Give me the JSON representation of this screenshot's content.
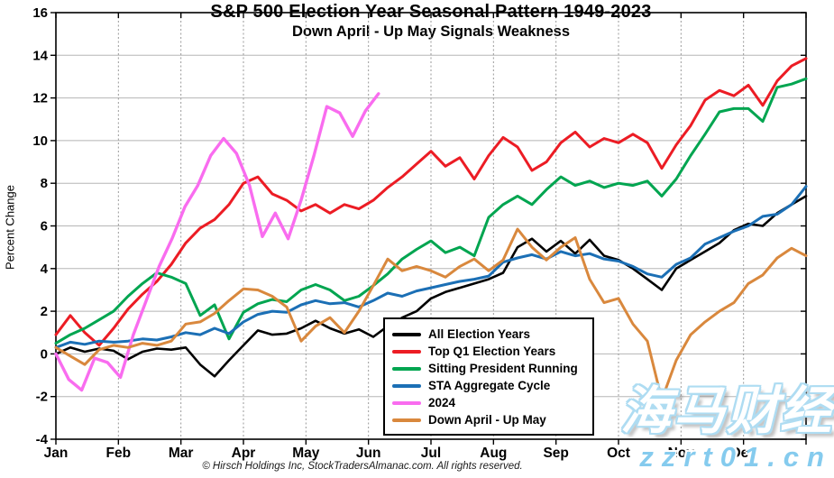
{
  "page": {
    "title": "S&P 500 Election Year Seasonal Pattern 1949-2023",
    "subtitle": "Down April - Up May Signals Weakness",
    "copyright": "© Hirsch Holdings Inc, StockTradersAlmanac.com. All rights reserved.",
    "watermark": {
      "text": "海马财经",
      "url": "zzrt01.cn"
    }
  },
  "chart_data": {
    "type": "line",
    "title": "S&P 500 Election Year Seasonal Pattern 1949-2023",
    "subtitle": "Down April - Up May Signals Weakness",
    "ylabel": "Percent Change",
    "xlabel": "",
    "grid": true,
    "legend_position": "inside-bottom-center-box",
    "x_axis": {
      "months": [
        "Jan",
        "Feb",
        "Mar",
        "Apr",
        "May",
        "Jun",
        "Jul",
        "Aug",
        "Sep",
        "Oct",
        "Nov",
        "Dec"
      ]
    },
    "y_axis": {
      "min": -4,
      "max": 16,
      "tick_step": 2,
      "ticks": [
        16,
        14,
        12,
        10,
        8,
        6,
        4,
        2,
        0,
        -2,
        -4
      ]
    },
    "colors": {
      "black": "#000000",
      "red": "#ec1c24",
      "green": "#00a550",
      "blue": "#1b6fb5",
      "magenta": "#f96cef",
      "orange": "#d9883d",
      "grid_h": "#b5b5b5",
      "grid_v": "#9a9a9a",
      "axis": "#000000"
    },
    "series": [
      {
        "name": "All Election Years",
        "color": "#000000",
        "width": 2.6,
        "x_end": 1,
        "values": [
          0.0,
          0.3,
          0.1,
          0.25,
          0.15,
          -0.25,
          0.1,
          0.25,
          0.2,
          0.3,
          -0.5,
          -1.05,
          -0.3,
          0.4,
          1.1,
          0.9,
          0.95,
          1.2,
          1.55,
          1.2,
          0.95,
          1.15,
          0.8,
          1.3,
          1.7,
          2.0,
          2.6,
          2.9,
          3.1,
          3.3,
          3.5,
          3.8,
          5.0,
          5.4,
          4.8,
          5.3,
          4.7,
          5.35,
          4.6,
          4.4,
          4.0,
          3.5,
          3.0,
          4.0,
          4.4,
          4.8,
          5.2,
          5.8,
          6.1,
          6.0,
          6.6,
          7.0,
          7.4
        ]
      },
      {
        "name": "Top Q1 Election Years",
        "color": "#ec1c24",
        "width": 3,
        "x_end": 1,
        "values": [
          0.9,
          1.8,
          1.0,
          0.4,
          1.2,
          2.1,
          2.8,
          3.4,
          4.2,
          5.2,
          5.9,
          6.3,
          7.0,
          8.0,
          8.3,
          7.5,
          7.2,
          6.7,
          7.0,
          6.6,
          7.0,
          6.8,
          7.2,
          7.8,
          8.3,
          8.9,
          9.5,
          8.8,
          9.2,
          8.2,
          9.3,
          10.15,
          9.7,
          8.6,
          9.0,
          9.9,
          10.4,
          9.7,
          10.1,
          9.9,
          10.3,
          9.9,
          8.7,
          9.8,
          10.7,
          11.9,
          12.35,
          12.1,
          12.6,
          11.65,
          12.8,
          13.5,
          13.85
        ]
      },
      {
        "name": "Sitting President Running",
        "color": "#00a550",
        "width": 3,
        "x_end": 1,
        "values": [
          0.5,
          0.9,
          1.2,
          1.6,
          2.0,
          2.7,
          3.3,
          3.8,
          3.6,
          3.3,
          1.8,
          2.3,
          0.7,
          1.95,
          2.35,
          2.55,
          2.45,
          3.0,
          3.25,
          3.0,
          2.5,
          2.7,
          3.2,
          3.75,
          4.45,
          4.9,
          5.3,
          4.75,
          5.0,
          4.6,
          6.4,
          7.0,
          7.4,
          7.0,
          7.7,
          8.3,
          7.9,
          8.1,
          7.8,
          8.0,
          7.9,
          8.1,
          7.4,
          8.2,
          9.3,
          10.3,
          11.35,
          11.5,
          11.5,
          10.9,
          12.5,
          12.65,
          12.9
        ]
      },
      {
        "name": "STA Aggregate Cycle",
        "color": "#1b6fb5",
        "width": 3,
        "x_end": 1,
        "values": [
          0.3,
          0.55,
          0.45,
          0.6,
          0.55,
          0.6,
          0.7,
          0.65,
          0.8,
          1.0,
          0.9,
          1.2,
          0.95,
          1.5,
          1.85,
          2.0,
          1.95,
          2.3,
          2.5,
          2.35,
          2.4,
          2.2,
          2.5,
          2.85,
          2.7,
          2.95,
          3.1,
          3.25,
          3.4,
          3.5,
          3.65,
          4.3,
          4.5,
          4.65,
          4.45,
          4.8,
          4.6,
          4.7,
          4.45,
          4.35,
          4.1,
          3.75,
          3.6,
          4.2,
          4.5,
          5.15,
          5.45,
          5.75,
          6.0,
          6.45,
          6.55,
          7.0,
          7.85
        ]
      },
      {
        "name": "2024",
        "color": "#f96cef",
        "width": 3.4,
        "x_end": 0.43,
        "values": [
          0.0,
          -1.2,
          -1.7,
          -0.2,
          -0.4,
          -1.1,
          0.9,
          2.5,
          4.1,
          5.4,
          6.9,
          7.9,
          9.3,
          10.1,
          9.4,
          7.9,
          5.5,
          6.6,
          5.4,
          7.2,
          9.3,
          11.6,
          11.3,
          10.2,
          11.4,
          12.2
        ]
      },
      {
        "name": "Down April - Up May",
        "color": "#d9883d",
        "width": 3,
        "x_end": 1,
        "values": [
          0.3,
          -0.1,
          -0.5,
          0.2,
          0.4,
          0.3,
          0.5,
          0.4,
          0.6,
          1.4,
          1.5,
          1.9,
          2.5,
          3.05,
          3.0,
          2.7,
          2.2,
          0.6,
          1.3,
          1.7,
          1.0,
          2.0,
          3.2,
          4.45,
          3.9,
          4.1,
          3.9,
          3.6,
          4.1,
          4.45,
          3.9,
          4.4,
          5.85,
          5.0,
          4.4,
          5.0,
          5.45,
          3.5,
          2.4,
          2.6,
          1.4,
          0.6,
          -2.15,
          -0.3,
          0.9,
          1.5,
          2.0,
          2.4,
          3.3,
          3.7,
          4.5,
          4.95,
          4.6
        ]
      }
    ]
  }
}
